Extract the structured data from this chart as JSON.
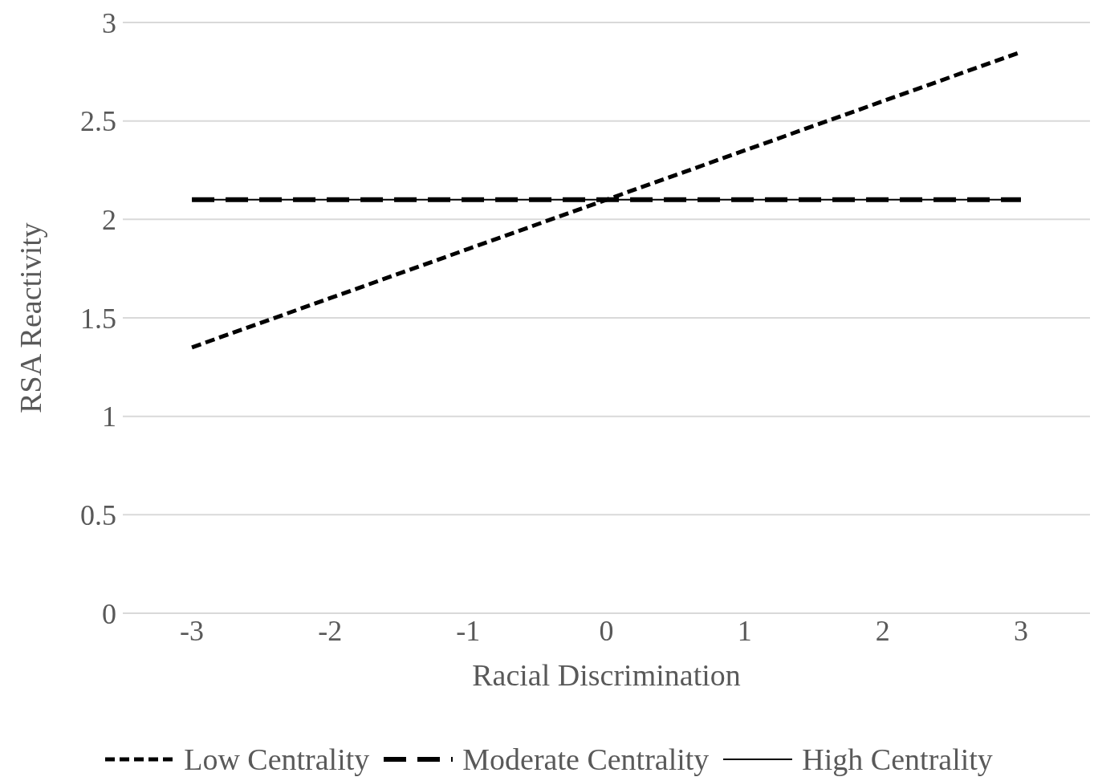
{
  "chart_data": {
    "type": "line",
    "xlabel": "Racial Discrimination",
    "ylabel": "RSA Reactivity",
    "categories": [
      "-3",
      "-2",
      "-1",
      "0",
      "1",
      "2",
      "3"
    ],
    "series": [
      {
        "name": "Low Centrality",
        "color": "#000000",
        "line_style": "dotted",
        "values": [
          1.35,
          1.6,
          1.85,
          2.1,
          2.35,
          2.6,
          2.85
        ]
      },
      {
        "name": "Moderate Centrality",
        "color": "#000000",
        "line_style": "dashed",
        "values": [
          2.1,
          2.1,
          2.1,
          2.1,
          2.1,
          2.1,
          2.1
        ]
      },
      {
        "name": "High Centrality",
        "color": "#000000",
        "line_style": "solid",
        "values": [
          2.1,
          2.1,
          2.1,
          2.1,
          2.1,
          2.1,
          2.1
        ]
      }
    ],
    "ylim": [
      0,
      3
    ],
    "yticks": [
      0,
      0.5,
      1,
      1.5,
      2,
      2.5,
      3
    ],
    "grid": "y",
    "legend": "bottom",
    "marker": "none"
  }
}
